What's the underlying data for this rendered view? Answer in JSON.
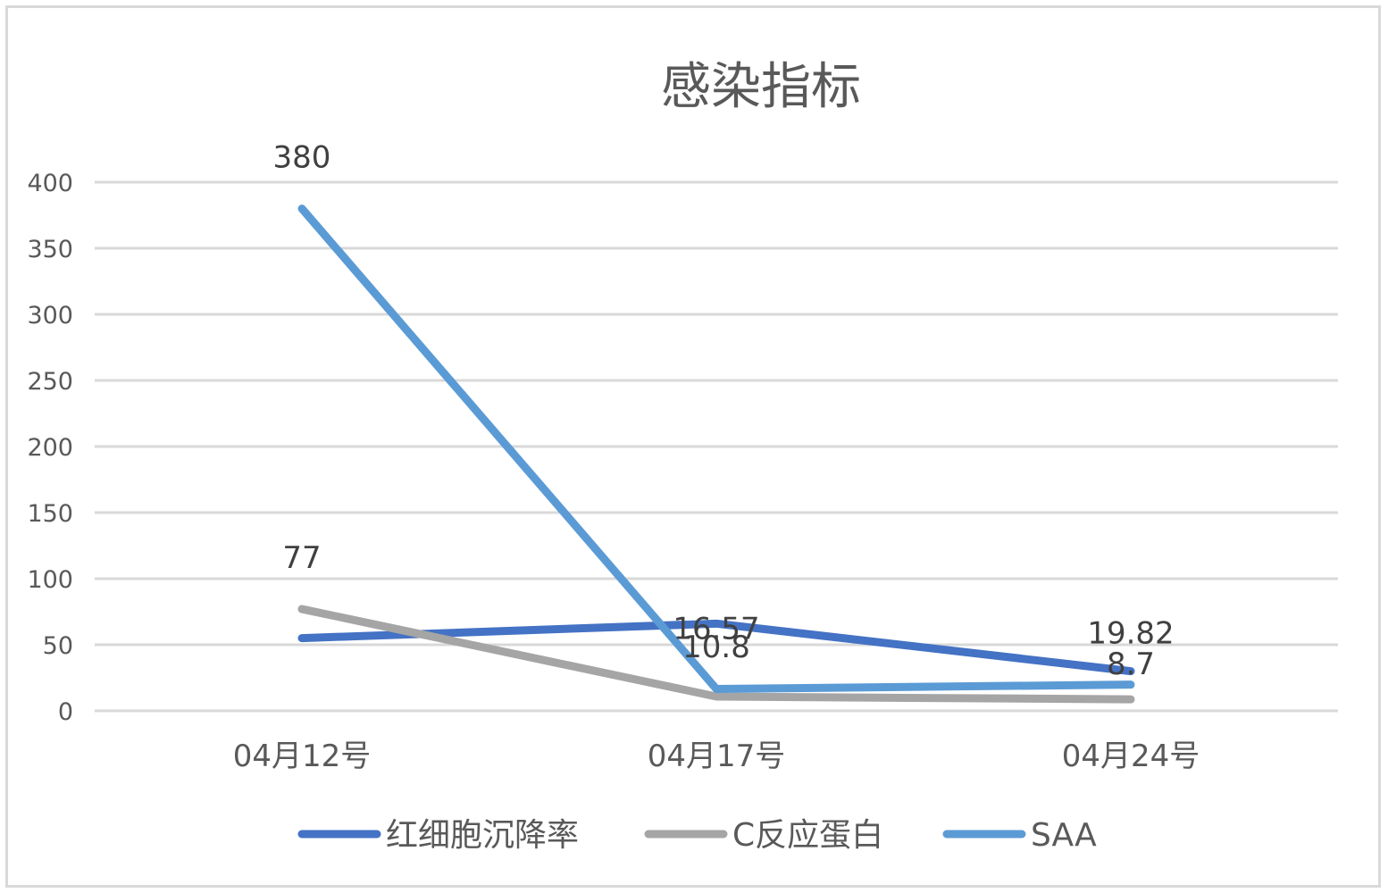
{
  "chart_data": {
    "type": "line",
    "title": "感染指标",
    "xlabel": "",
    "ylabel": "",
    "categories": [
      "04月12号",
      "04月17号",
      "04月24号"
    ],
    "ylim": [
      0,
      400
    ],
    "yticks": [
      0,
      50,
      100,
      150,
      200,
      250,
      300,
      350,
      400
    ],
    "grid": true,
    "legend_position": "bottom",
    "series": [
      {
        "name": "红细胞沉降率",
        "color": "#4472c4",
        "values": [
          55,
          66,
          30
        ],
        "data_labels": [
          "",
          "",
          ""
        ]
      },
      {
        "name": "C反应蛋白",
        "color": "#a5a5a5",
        "values": [
          77,
          10.8,
          8.7
        ],
        "data_labels": [
          "77",
          "10.8",
          "8.7"
        ]
      },
      {
        "name": "SAA",
        "color": "#5b9bd5",
        "values": [
          380,
          16.57,
          19.82
        ],
        "data_labels": [
          "380",
          "16.57",
          "19.82"
        ]
      }
    ]
  }
}
